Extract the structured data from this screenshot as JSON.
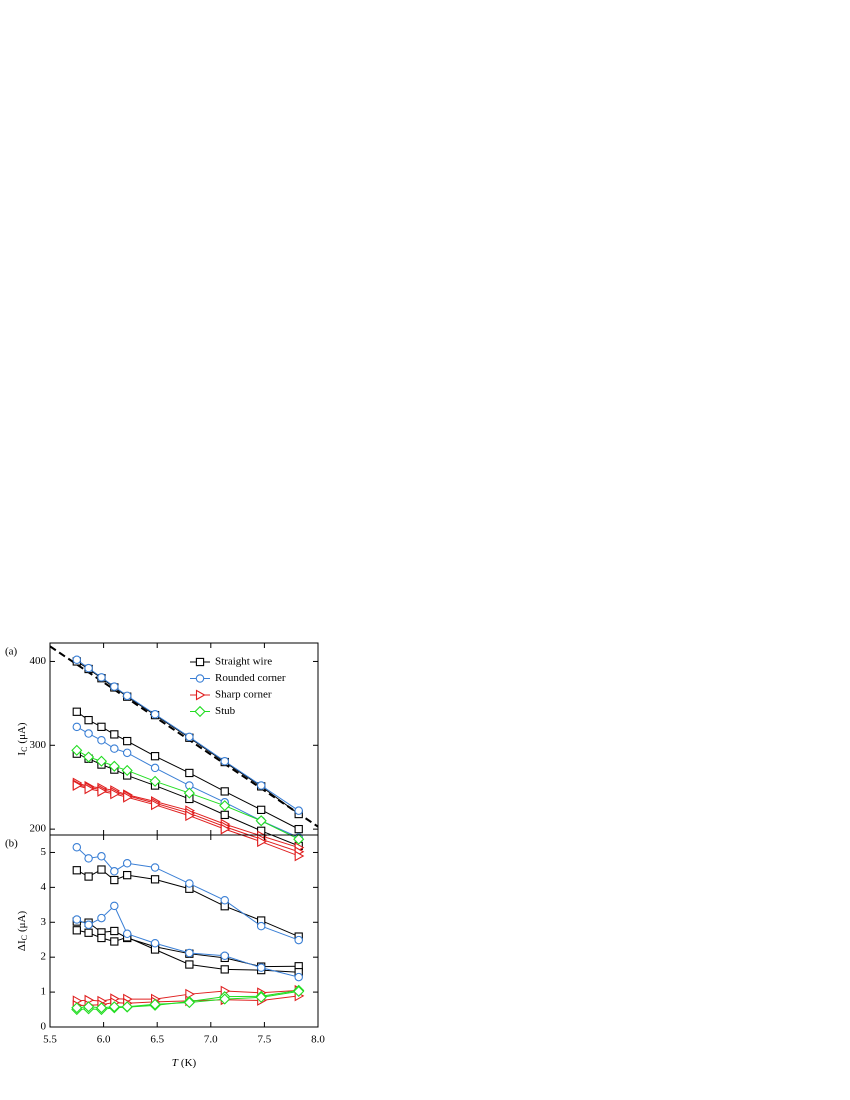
{
  "chart_data": [
    {
      "type": "line",
      "panel_label": "(a)",
      "y_label": {
        "main": "I",
        "sub": "C",
        "unit": "(μA)"
      },
      "x": [
        5.75,
        5.86,
        5.98,
        6.1,
        6.22,
        6.48,
        6.8,
        7.13,
        7.47,
        7.82
      ],
      "xlim": [
        5.5,
        8.0
      ],
      "ylim": [
        193,
        422
      ],
      "yticks": [
        200,
        300,
        400
      ],
      "legend": "upper right",
      "fit": {
        "x": [
          5.5,
          8.0
        ],
        "y": [
          418,
          203
        ],
        "color": "#000000",
        "style": "dashed"
      },
      "series": [
        {
          "name": "Straight wire",
          "color": "#000000",
          "marker": "square",
          "curves": [
            [
              400,
              391,
              380,
              369,
              358,
              336,
              309,
              280,
              251,
              218
            ],
            [
              340,
              330,
              322,
              313,
              305,
              287,
              267,
              245,
              223,
              200
            ],
            [
              290,
              284,
              277,
              271,
              264,
              252,
              236,
              217,
              198,
              180
            ]
          ]
        },
        {
          "name": "Rounded corner",
          "color": "#3a7fd5",
          "marker": "circle",
          "curves": [
            [
              402,
              392,
              381,
              370,
              359,
              337,
              310,
              281,
              252,
              222
            ],
            [
              322,
              314,
              306,
              296,
              291,
              273,
              252,
              232,
              210,
              190
            ]
          ]
        },
        {
          "name": "Sharp corner",
          "color": "#e02020",
          "marker": "triangle",
          "curves": [
            [
              255,
              251,
              249,
              246,
              241,
              233,
              222,
              206,
              192,
              178
            ],
            [
              253,
              250,
              247,
              244,
              240,
              231,
              219,
              203,
              188,
              173
            ],
            [
              252,
              248,
              245,
              242,
              238,
              229,
              216,
              200,
              185,
              168
            ]
          ]
        },
        {
          "name": "Stub",
          "color": "#22dd22",
          "marker": "diamond",
          "curves": [
            [
              294,
              286,
              281,
              275,
              270,
              257,
              243,
              228,
              210,
              188
            ]
          ]
        }
      ]
    },
    {
      "type": "line",
      "panel_label": "(b)",
      "y_label": {
        "main": "ΔI",
        "sub": "C",
        "unit": "(μA)"
      },
      "x_label": {
        "var": "T",
        "unit": "(K)"
      },
      "x": [
        5.75,
        5.86,
        5.98,
        6.1,
        6.22,
        6.48,
        6.8,
        7.13,
        7.47,
        7.82
      ],
      "xlim": [
        5.5,
        8.0
      ],
      "xticks": [
        5.5,
        {
          "value": 6.0,
          "label": "6.0"
        },
        6.5,
        {
          "value": 7.0,
          "label": "7.0"
        },
        7.5,
        {
          "value": 8.0,
          "label": "8.0"
        }
      ],
      "ylim": [
        0,
        5.5
      ],
      "yticks": [
        0,
        1,
        2,
        3,
        4,
        5
      ],
      "series": [
        {
          "color": "#000000",
          "marker": "square",
          "curves": [
            [
              4.49,
              4.31,
              4.51,
              4.21,
              4.35,
              4.23,
              3.96,
              3.46,
              3.05,
              2.59
            ],
            [
              3.02,
              2.99,
              2.71,
              2.75,
              2.55,
              2.3,
              2.1,
              1.98,
              1.73,
              1.74
            ],
            [
              2.77,
              2.7,
              2.55,
              2.45,
              2.57,
              2.22,
              1.79,
              1.65,
              1.63,
              1.57
            ]
          ]
        },
        {
          "color": "#3a7fd5",
          "marker": "circle",
          "curves": [
            [
              5.15,
              4.83,
              4.89,
              4.46,
              4.69,
              4.57,
              4.11,
              3.63,
              2.89,
              2.49
            ],
            [
              3.08,
              2.93,
              3.12,
              3.47,
              2.67,
              2.4,
              2.12,
              2.04,
              1.7,
              1.43
            ]
          ]
        },
        {
          "color": "#e02020",
          "marker": "triangle",
          "curves": [
            [
              0.75,
              0.77,
              0.74,
              0.81,
              0.8,
              0.8,
              0.94,
              1.03,
              0.98,
              1.05
            ],
            [
              0.62,
              0.62,
              0.64,
              0.7,
              0.68,
              0.72,
              0.75,
              0.78,
              0.76,
              0.89
            ]
          ]
        },
        {
          "color": "#22dd22",
          "marker": "diamond",
          "curves": [
            [
              0.5,
              0.52,
              0.5,
              0.55,
              0.57,
              0.62,
              0.73,
              0.87,
              0.88,
              1.05
            ],
            [
              0.55,
              0.58,
              0.55,
              0.58,
              0.58,
              0.65,
              0.7,
              0.8,
              0.85,
              1.02
            ]
          ]
        }
      ]
    }
  ]
}
